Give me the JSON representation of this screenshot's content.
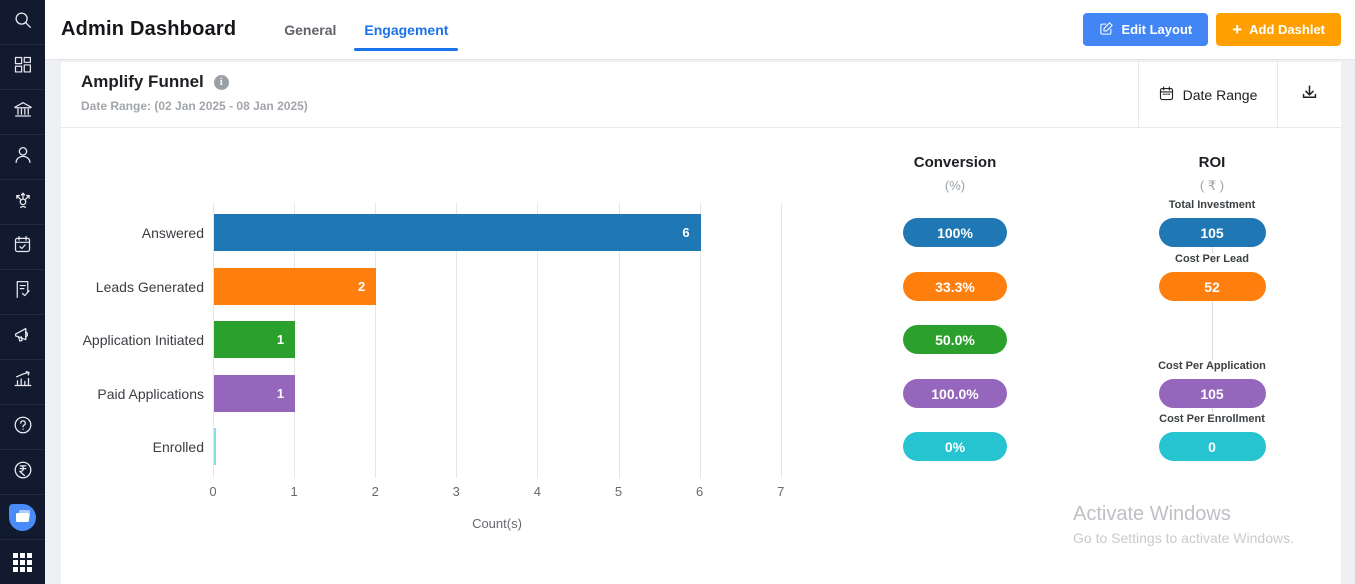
{
  "colors": {
    "tab_active": "#1a73e8",
    "btn_blue": "#4285f4",
    "btn_orange": "#ffa000",
    "sidebar_bg": "#121a30",
    "chat_accent": "#4a8cf7"
  },
  "sidebar": {
    "icons": [
      "search",
      "dashboard",
      "institution",
      "user",
      "distribution",
      "calendar-check",
      "document-check",
      "megaphone",
      "analytics",
      "help",
      "currency-rupee",
      "chat",
      "apps-grid"
    ]
  },
  "header": {
    "title": "Admin Dashboard",
    "tabs": [
      {
        "label": "General",
        "active": false
      },
      {
        "label": "Engagement",
        "active": true
      }
    ],
    "edit_layout_label": "Edit Layout",
    "add_dashlet_label": "Add Dashlet"
  },
  "panel": {
    "title": "Amplify Funnel",
    "subtitle": "Date Range: (02 Jan 2025 - 08 Jan 2025)",
    "date_range_label": "Date Range"
  },
  "chart_data": {
    "type": "bar",
    "orientation": "horizontal",
    "categories": [
      "Answered",
      "Leads Generated",
      "Application Initiated",
      "Paid Applications",
      "Enrolled"
    ],
    "values": [
      6,
      2,
      1,
      1,
      0
    ],
    "bar_colors": [
      "#1f77b4",
      "#ff7f0e",
      "#2ca02c",
      "#9467bd",
      "#26c3d1"
    ],
    "xlabel": "Count(s)",
    "x_ticks": [
      0,
      1,
      2,
      3,
      4,
      5,
      6,
      7
    ],
    "xlim": [
      0,
      7
    ],
    "grid": true,
    "conversion": {
      "title": "Conversion",
      "unit": "(%)",
      "values": [
        "100%",
        "33.3%",
        "50.0%",
        "100.0%",
        "0%"
      ]
    },
    "roi": {
      "title": "ROI",
      "unit": "( ₹ )",
      "items": [
        {
          "label": "Total Investment",
          "value": "105",
          "row": 0
        },
        {
          "label": "Cost Per Lead",
          "value": "52",
          "row": 1
        },
        {
          "label": "Cost Per Application",
          "value": "105",
          "row": 3
        },
        {
          "label": "Cost Per Enrollment",
          "value": "0",
          "row": 4
        }
      ]
    }
  },
  "watermark": {
    "line1": "Activate Windows",
    "line2": "Go to Settings to activate Windows."
  }
}
